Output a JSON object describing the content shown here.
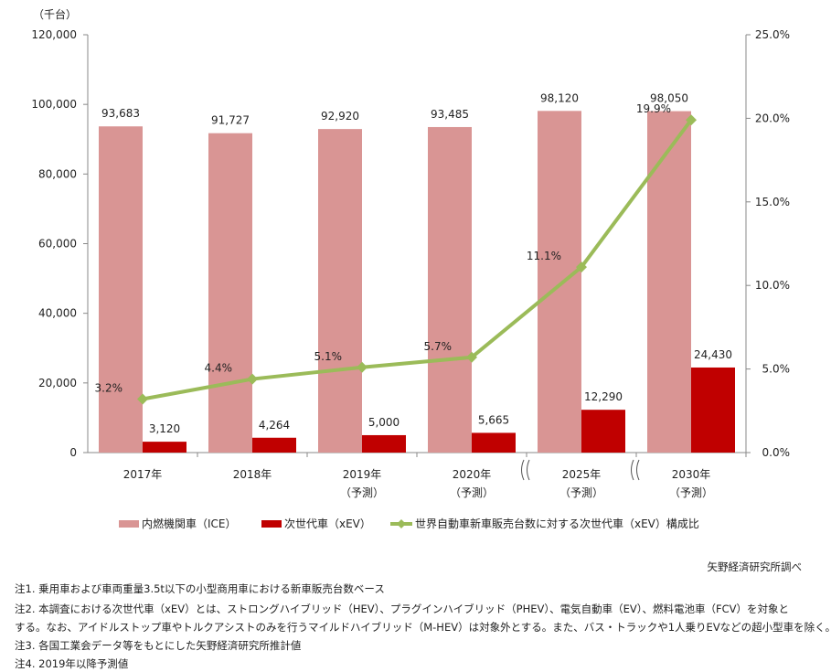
{
  "chart_data": {
    "type": "bar+line",
    "unit_label": "（千台）",
    "categories": [
      "2017年",
      "2018年",
      "2019年",
      "2020年",
      "2025年",
      "2030年"
    ],
    "category_sublabels": [
      "",
      "",
      "（予測）",
      "（予測）",
      "（予測）",
      "（予測）"
    ],
    "axis_breaks_before": [
      "2025年",
      "2030年"
    ],
    "y_left": {
      "min": 0,
      "max": 120000,
      "ticks": [
        "0",
        "20,000",
        "40,000",
        "60,000",
        "80,000",
        "100,000",
        "120,000"
      ]
    },
    "y_right": {
      "min": 0,
      "max": 25,
      "ticks": [
        "0.0%",
        "5.0%",
        "10.0%",
        "15.0%",
        "20.0%",
        "25.0%"
      ]
    },
    "series": [
      {
        "name": "内燃機関車（ICE）",
        "type": "bar",
        "color": "#d99594",
        "values": [
          93683,
          91727,
          92920,
          93485,
          98120,
          98050
        ],
        "labels": [
          "93,683",
          "91,727",
          "92,920",
          "93,485",
          "98,120",
          "98,050"
        ]
      },
      {
        "name": "次世代車（xEV）",
        "type": "bar",
        "color": "#c00000",
        "values": [
          3120,
          4264,
          5000,
          5665,
          12290,
          24430
        ],
        "labels": [
          "3,120",
          "4,264",
          "5,000",
          "5,665",
          "12,290",
          "24,430"
        ]
      },
      {
        "name": "世界自動車新車販売台数に対する次世代車（xEV）構成比",
        "type": "line",
        "axis": "right",
        "color": "#9bbb59",
        "values": [
          3.2,
          4.4,
          5.1,
          5.7,
          11.1,
          19.9
        ],
        "labels": [
          "3.2%",
          "4.4%",
          "5.1%",
          "5.7%",
          "11.1%",
          "19.9%"
        ]
      }
    ],
    "legend": "bottom",
    "grid": false
  },
  "source": "矢野経済研究所調べ",
  "notes": [
    "注1. 乗用車および車両重量3.5t以下の小型商用車における新車販売台数ベース",
    "注2. 本調査における次世代車（xEV）とは、ストロングハイブリッド（HEV）、プラグインハイブリッド（PHEV）、電気自動車（EV）、燃料電池車（FCV）を対象と",
    "する。なお、アイドルストップ車やトルクアシストのみを行うマイルドハイブリッド（M-HEV）は対象外とする。また、バス・トラックや1人乗りEVなどの超小型車を除く。",
    "注3. 各国工業会データ等をもとにした矢野経済研究所推計値",
    "注4. 2019年以降予測値"
  ]
}
